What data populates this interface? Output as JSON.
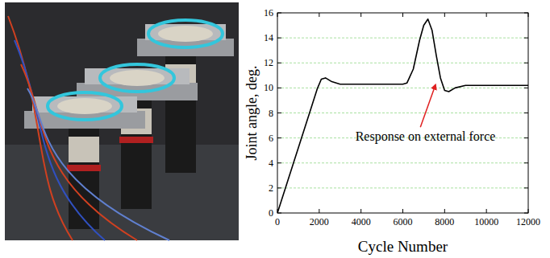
{
  "chart_data": {
    "type": "line",
    "x_label": "Cycle Number",
    "y_label": "Joint angle, deg.",
    "annotations": [
      {
        "text": "Response on external force"
      }
    ],
    "x": [
      0,
      500,
      1000,
      1500,
      1900,
      2100,
      2300,
      2600,
      3000,
      3500,
      4000,
      5000,
      6000,
      6200,
      6500,
      6800,
      7000,
      7200,
      7400,
      7600,
      7800,
      8000,
      8200,
      8500,
      9000,
      10000,
      11000,
      12000
    ],
    "values": [
      0,
      2.6,
      5.2,
      7.8,
      9.9,
      10.7,
      10.8,
      10.5,
      10.3,
      10.3,
      10.3,
      10.3,
      10.3,
      10.4,
      11.5,
      13.8,
      15.0,
      15.5,
      14.6,
      12.6,
      10.8,
      9.8,
      9.7,
      10.0,
      10.2,
      10.2,
      10.2,
      10.2
    ],
    "color": "#000000",
    "xlim": [
      0,
      12000
    ],
    "xticks": [
      0,
      2000,
      4000,
      6000,
      8000,
      10000,
      12000
    ],
    "ylim": [
      0,
      16
    ],
    "yticks": [
      0,
      2,
      4,
      6,
      8,
      10,
      12,
      14,
      16
    ],
    "grid": true
  }
}
